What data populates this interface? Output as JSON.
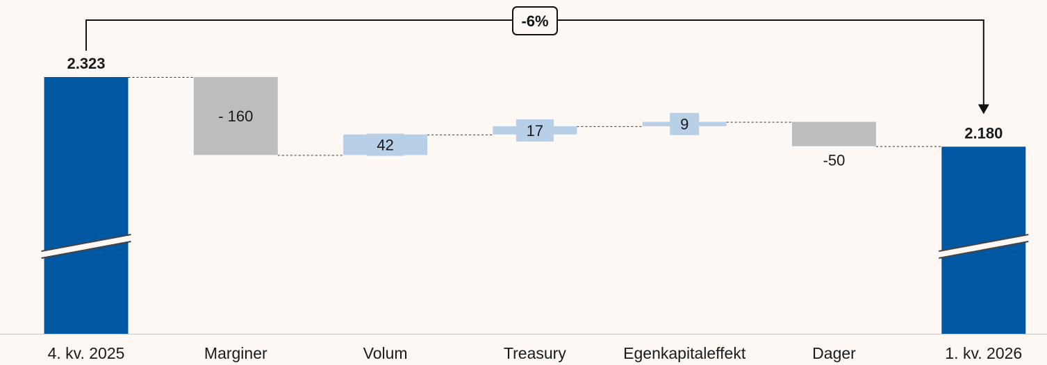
{
  "chart_data": {
    "type": "bar",
    "variant": "waterfall",
    "categories": [
      "4. kv. 2025",
      "Marginer",
      "Volum",
      "Treasury",
      "Egenkapitaleffekt",
      "Dager",
      "1. kv. 2026"
    ],
    "values": [
      2323,
      -160,
      42,
      17,
      9,
      -50,
      2180
    ],
    "value_labels": [
      "2.323",
      "- 160",
      "42",
      "17",
      "9",
      "-50",
      "2.180"
    ],
    "kinds": [
      "total",
      "change",
      "change",
      "change",
      "change",
      "change",
      "total"
    ],
    "total_change_label": "-6%",
    "axis_break_on_totals": true,
    "colors": {
      "total": "#0058a3",
      "increase": "#b8cfe8",
      "decrease": "#bdbdbd",
      "connector": "#333333",
      "background": "#fdf8f4",
      "text": "#1a1a1a"
    },
    "title": "",
    "xlabel": "",
    "ylabel": "",
    "grid": false,
    "legend": "none"
  }
}
